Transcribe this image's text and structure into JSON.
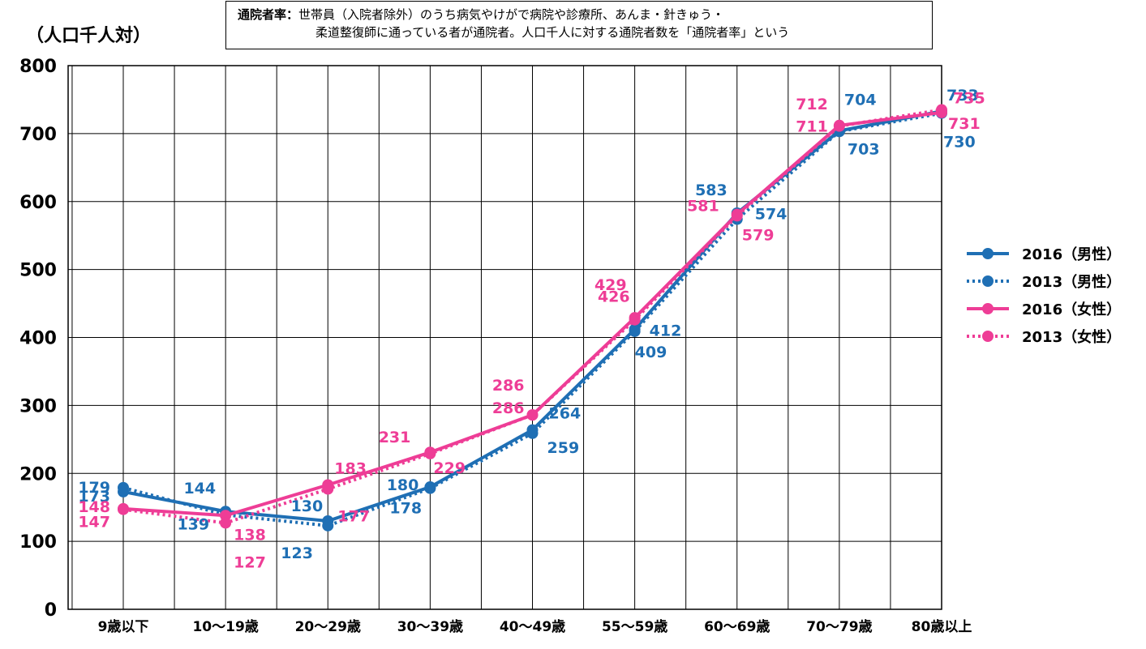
{
  "unit_label": "（人口千人対）",
  "note": {
    "term": "通院者率：",
    "line1": "世帯員（入院者除外）のうち病気やけがで病院や診療所、あんま・針きゅう・",
    "line2": "柔道整復師に通っている者が通院者。人口千人に対する通院者数を「通院者率」という"
  },
  "chart_data": {
    "type": "line",
    "title": "",
    "xlabel": "",
    "ylabel": "（人口千人対）",
    "ylim": [
      0,
      800
    ],
    "yticks": [
      0,
      100,
      200,
      300,
      400,
      500,
      600,
      700,
      800
    ],
    "grid": true,
    "legend_position": "right",
    "categories": [
      "9歳以下",
      "10～19歳",
      "20～29歳",
      "30～39歳",
      "40～49歳",
      "55～59歳",
      "60～69歳",
      "70～79歳",
      "80歳以上"
    ],
    "series": [
      {
        "name": "2016（男性）",
        "color": "#1f6fb4",
        "style": "solid",
        "values": [
          173,
          144,
          130,
          180,
          264,
          412,
          583,
          704,
          733
        ]
      },
      {
        "name": "2013（男性）",
        "color": "#1f6fb4",
        "style": "dotted",
        "values": [
          179,
          139,
          123,
          178,
          259,
          409,
          574,
          703,
          730
        ]
      },
      {
        "name": "2016（女性）",
        "color": "#ee3d96",
        "style": "solid",
        "values": [
          148,
          138,
          183,
          231,
          286,
          429,
          581,
          712,
          731
        ]
      },
      {
        "name": "2013（女性）",
        "color": "#ee3d96",
        "style": "dotted",
        "values": [
          147,
          127,
          177,
          229,
          286,
          426,
          579,
          711,
          735
        ]
      }
    ]
  }
}
